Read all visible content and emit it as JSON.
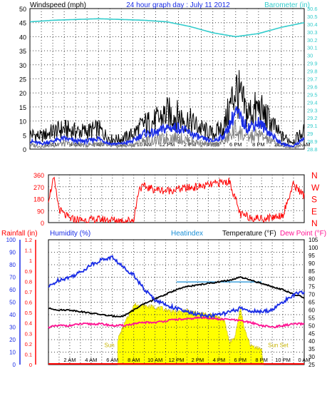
{
  "chart_data": [
    {
      "type": "line",
      "title": "24 hour graph day : July 11 2012",
      "ylabel_left": "Windspeed (mph)",
      "ylabel_right": "Barometer (in)",
      "ylim_left": [
        0,
        50
      ],
      "yticks_left": [
        "0",
        "5",
        "10",
        "15",
        "20",
        "25",
        "30",
        "35",
        "40",
        "45",
        "50"
      ],
      "ylim_right": [
        28.8,
        30.6
      ],
      "yticks_right": [
        "28.8",
        "28.9",
        "29",
        "29.1",
        "29.2",
        "29.3",
        "29.4",
        "29.5",
        "29.6",
        "29.7",
        "29.8",
        "29.9",
        "30",
        "30.1",
        "30.2",
        "30.3",
        "30.4",
        "30.5",
        "30.6"
      ],
      "x_ticks": [
        "2 AM",
        "4 AM",
        "6 AM",
        "8 AM",
        "10 AM",
        "12 PM",
        "2 PM",
        "4 PM",
        "6 PM",
        "8 PM",
        "10 PM",
        "0 AM"
      ],
      "grid": true,
      "colors": {
        "gust": "#000000",
        "wind_avg": "#1a2de6",
        "wind_low": "#808080",
        "barometer": "#33cccc"
      },
      "barometer": {
        "x_hours": [
          0,
          1,
          2,
          4,
          6,
          8,
          10,
          12,
          14,
          16,
          18,
          20,
          22,
          24
        ],
        "values": [
          30.43,
          30.44,
          30.45,
          30.46,
          30.47,
          30.46,
          30.45,
          30.43,
          30.37,
          30.29,
          30.24,
          30.28,
          30.36,
          30.42
        ]
      },
      "wind_avg": {
        "x_hours": [
          0,
          1,
          2,
          3,
          4,
          5,
          6,
          7,
          8,
          9,
          10,
          11,
          12,
          13,
          14,
          15,
          16,
          17,
          18,
          19,
          20,
          21,
          22,
          23,
          24
        ],
        "values": [
          3,
          2,
          3,
          4,
          3,
          3,
          4,
          2,
          2,
          3,
          6,
          6,
          8,
          8,
          6,
          4,
          3,
          5,
          14,
          8,
          10,
          6,
          2,
          1,
          4
        ]
      },
      "wind_gust": {
        "x_hours": [
          0,
          1,
          2,
          3,
          4,
          5,
          6,
          7,
          8,
          9,
          10,
          11,
          12,
          13,
          14,
          15,
          16,
          17,
          18,
          19,
          20,
          21,
          22,
          23,
          24
        ],
        "values": [
          6,
          5,
          7,
          8,
          7,
          7,
          8,
          4,
          4,
          6,
          10,
          11,
          14,
          13,
          11,
          8,
          6,
          9,
          24,
          14,
          16,
          11,
          5,
          3,
          7
        ]
      }
    },
    {
      "type": "scatter",
      "ylim": [
        0,
        360
      ],
      "yticks": [
        "0",
        "90",
        "180",
        "270",
        "360"
      ],
      "ylabels_right": [
        "N",
        "W",
        "S",
        "E",
        "N"
      ],
      "color": "#ff0000",
      "x_ticks": [
        "2 AM",
        "4 AM",
        "6 AM",
        "8 AM",
        "10 AM",
        "12 PM",
        "2 PM",
        "4 PM",
        "6 PM",
        "8 PM",
        "10 PM",
        "0 AM"
      ],
      "wind_direction": {
        "x_hours": [
          0,
          0.5,
          1,
          1.5,
          2,
          3,
          4,
          5,
          6,
          7,
          8,
          8.5,
          9,
          10,
          11,
          12,
          13,
          14,
          15,
          16,
          17,
          18,
          19,
          20,
          21,
          22,
          23,
          24
        ],
        "values": [
          180,
          330,
          100,
          60,
          30,
          20,
          20,
          25,
          20,
          15,
          20,
          260,
          270,
          250,
          240,
          250,
          260,
          270,
          280,
          300,
          310,
          60,
          40,
          30,
          40,
          60,
          290,
          200
        ]
      }
    },
    {
      "type": "line",
      "ylabel_rainfall": "Rainfall (in)",
      "ylabel_humidity": "Humidity (%)",
      "ylabel_heatindex": "Heatindex",
      "ylabel_temperature": "Temperature (°F)",
      "ylabel_dewpoint": "Dew Point (°F)",
      "rain_ticks": [
        "0",
        "0.1",
        "0.2",
        "0.3",
        "0.4",
        "0.5",
        "0.6",
        "0.7",
        "0.8",
        "0.9",
        "1",
        "1.1",
        "1.2"
      ],
      "humidity_ticks": [
        "0",
        "10",
        "20",
        "30",
        "40",
        "50",
        "60",
        "70",
        "80",
        "90",
        "100"
      ],
      "temp_ticks": [
        "25",
        "30",
        "35",
        "40",
        "45",
        "50",
        "55",
        "60",
        "65",
        "70",
        "75",
        "80",
        "85",
        "90",
        "95",
        "100",
        "105"
      ],
      "x_ticks": [
        "2 AM",
        "4 AM",
        "6 AM",
        "8 AM",
        "10 AM",
        "12 PM",
        "2 PM",
        "4 PM",
        "6 PM",
        "8 PM",
        "10 PM",
        "0 AM"
      ],
      "annotations": [
        "Sun",
        "Sun Set"
      ],
      "colors": {
        "rain": "#ff0000",
        "humidity": "#1a2de6",
        "heatindex": "#1a8fd6",
        "temperature": "#000000",
        "dewpoint": "#ff1493",
        "solar": "#ffff00"
      },
      "humidity": {
        "x_hours": [
          0,
          1,
          2,
          3,
          4,
          5,
          6,
          7,
          8,
          9,
          10,
          11,
          12,
          13,
          14,
          15,
          16,
          17,
          18,
          19,
          20,
          21,
          22,
          23,
          24
        ],
        "values": [
          62,
          68,
          70,
          74,
          80,
          84,
          86,
          78,
          72,
          60,
          52,
          48,
          45,
          42,
          40,
          39,
          40,
          42,
          45,
          43,
          42,
          44,
          50,
          56,
          58
        ]
      },
      "temperature": {
        "x_hours": [
          0,
          1,
          2,
          3,
          4,
          5,
          6,
          7,
          8,
          9,
          10,
          11,
          12,
          13,
          14,
          15,
          16,
          17,
          18,
          19,
          20,
          21,
          22,
          23,
          24
        ],
        "values": [
          61,
          60,
          60,
          59,
          58,
          57,
          56,
          56,
          60,
          64,
          67,
          70,
          73,
          75,
          76,
          77,
          78,
          79,
          81,
          79,
          77,
          75,
          73,
          70,
          68
        ]
      },
      "heatindex": {
        "x_hours": [
          12,
          13,
          14,
          15,
          16,
          17,
          18,
          19,
          20
        ],
        "values": [
          78,
          78,
          78,
          78,
          78,
          78,
          78,
          78,
          78
        ]
      },
      "dewpoint": {
        "x_hours": [
          0,
          1,
          2,
          3,
          4,
          5,
          6,
          7,
          8,
          9,
          10,
          11,
          12,
          13,
          14,
          15,
          16,
          17,
          18,
          19,
          20,
          21,
          22,
          23,
          24
        ],
        "values": [
          49,
          50,
          50,
          51,
          51,
          51,
          50,
          50,
          51,
          52,
          52,
          53,
          54,
          54,
          55,
          55,
          54,
          54,
          53,
          52,
          50,
          49,
          50,
          51,
          51
        ]
      },
      "solar_pct": {
        "x_hours": [
          6.5,
          7,
          8,
          9,
          10,
          11,
          12,
          13,
          14,
          15,
          16,
          16.5,
          17,
          17.5,
          18,
          18.5,
          19,
          19.5,
          20,
          20.2
        ],
        "values": [
          20,
          30,
          48,
          47,
          46,
          44,
          42,
          43,
          41,
          40,
          38,
          35,
          18,
          22,
          45,
          25,
          15,
          14,
          12,
          0
        ]
      },
      "rainfall": {
        "x_hours": [
          0,
          24
        ],
        "values": [
          0,
          0
        ]
      }
    }
  ]
}
